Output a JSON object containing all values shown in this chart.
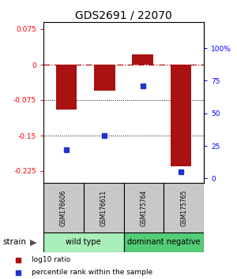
{
  "title": "GDS2691 / 22070",
  "samples": [
    "GSM176606",
    "GSM176611",
    "GSM175764",
    "GSM175765"
  ],
  "log10_ratio": [
    -0.095,
    -0.055,
    0.022,
    -0.215
  ],
  "percentile_rank": [
    22,
    33,
    71,
    5
  ],
  "bar_color": "#aa1111",
  "dot_color": "#2233cc",
  "ylim_left": [
    -0.25,
    0.09
  ],
  "ylim_right": [
    -3.33,
    120
  ],
  "yticks_left": [
    0.075,
    0,
    -0.075,
    -0.15,
    -0.225
  ],
  "yticks_right": [
    100,
    75,
    50,
    25,
    0
  ],
  "groups": [
    {
      "label": "wild type",
      "samples": [
        0,
        1
      ],
      "color": "#aaeebb"
    },
    {
      "label": "dominant negative",
      "samples": [
        2,
        3
      ],
      "color": "#55cc77"
    }
  ],
  "legend_items": [
    {
      "color": "#aa1111",
      "label": "log10 ratio"
    },
    {
      "color": "#2233cc",
      "label": "percentile rank within the sample"
    }
  ],
  "bar_width": 0.55,
  "strain_label": "strain"
}
